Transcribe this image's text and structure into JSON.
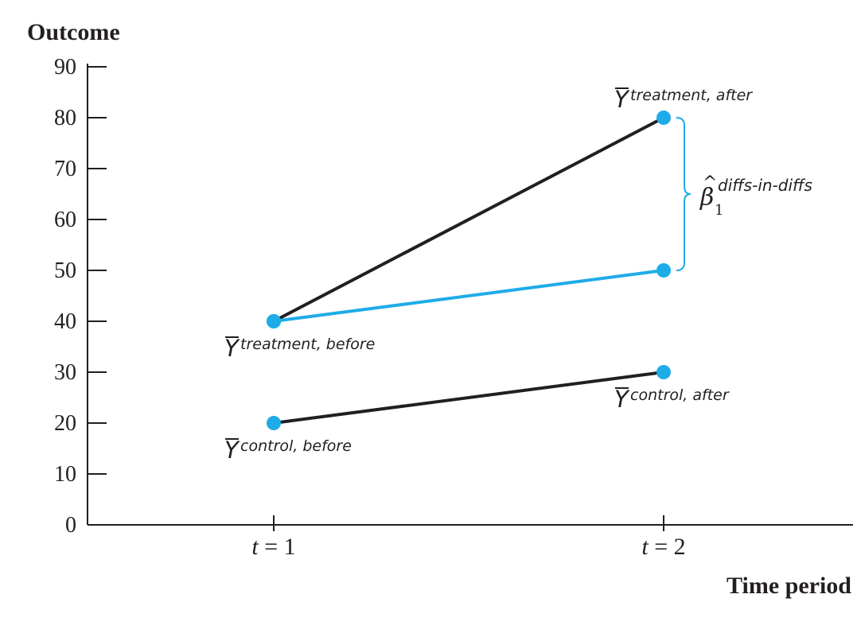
{
  "chart_data": {
    "type": "line",
    "ylabel": "Outcome",
    "xlabel": "Time period",
    "ylim": [
      0,
      90
    ],
    "yticks": [
      0,
      10,
      20,
      30,
      40,
      50,
      60,
      70,
      80,
      90
    ],
    "x_categories": [
      {
        "var": "t",
        "op": " = ",
        "num": "1"
      },
      {
        "var": "t",
        "op": " = ",
        "num": "2"
      }
    ],
    "series": [
      {
        "values": [
          40,
          80
        ],
        "color": "#231f20",
        "point_color": "#1eace8"
      },
      {
        "values": [
          40,
          50
        ],
        "color": "#1eace8",
        "point_color": "#1eace8"
      },
      {
        "values": [
          20,
          30
        ],
        "color": "#231f20",
        "point_color": "#1eace8"
      }
    ],
    "annotations": [
      {
        "x_index": 1,
        "y": 80,
        "base": "Y",
        "sub": "treatment, after",
        "placement": "above"
      },
      {
        "x_index": 0,
        "y": 40,
        "base": "Y",
        "sub": "treatment, before",
        "placement": "below"
      },
      {
        "x_index": 1,
        "y": 30,
        "base": "Y",
        "sub": "control, after",
        "placement": "below"
      },
      {
        "x_index": 0,
        "y": 20,
        "base": "Y",
        "sub": "control, before",
        "placement": "below"
      }
    ],
    "brace": {
      "x_index": 1,
      "y_from": 50,
      "y_to": 80,
      "color": "#1eace8",
      "label": {
        "symbol": "β",
        "hat": "^",
        "index": "1",
        "superscript": "diffs-in-diffs"
      }
    },
    "colors": {
      "axis": "#231f20",
      "accent": "#1eace8"
    }
  }
}
